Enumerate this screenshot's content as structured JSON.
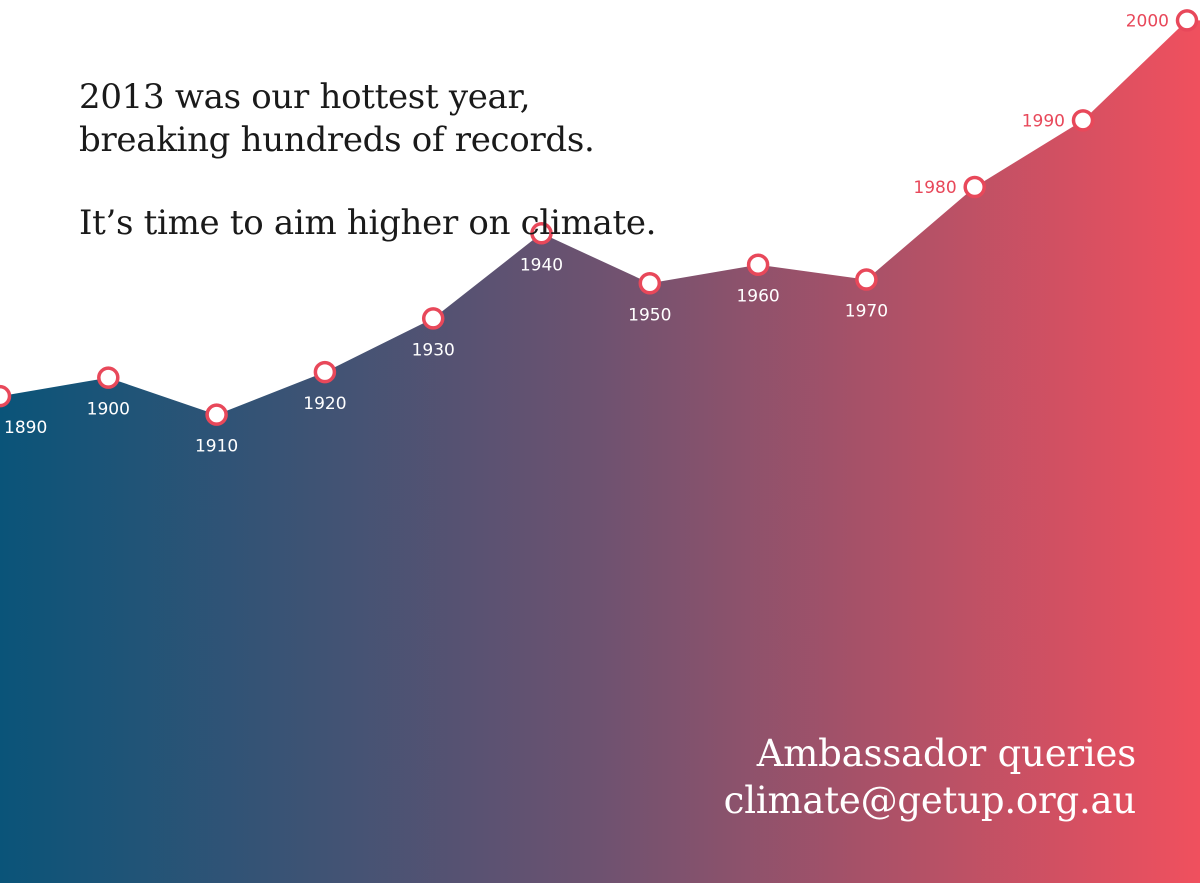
{
  "headline": {
    "line1": "2013 was our hottest year,",
    "line2": "breaking hundreds of records.",
    "line3": "It’s time to aim higher on climate."
  },
  "contact": {
    "line1": "Ambassador queries",
    "line2": "climate@getup.org.au"
  },
  "colors": {
    "gradient_start": "#0a5479",
    "gradient_mid": "#6e5270",
    "gradient_end": "#f0505e",
    "marker_stroke": "#e8485a",
    "marker_fill": "#ffffff",
    "label_on_fill": "#ffffff",
    "label_on_white": "#e8485a"
  },
  "chart_data": {
    "type": "area",
    "x": [
      "1890",
      "1900",
      "1910",
      "1920",
      "1930",
      "1940",
      "1950",
      "1960",
      "1970",
      "1980",
      "1990",
      "2000"
    ],
    "values": [
      0.13,
      0.23,
      0.03,
      0.26,
      0.55,
      1.01,
      0.74,
      0.84,
      0.76,
      1.26,
      1.62,
      2.16
    ],
    "ylim": [
      -2.5,
      2.2
    ],
    "grid": false,
    "legend": "none",
    "xlabel": "",
    "ylabel": "",
    "title": ""
  }
}
